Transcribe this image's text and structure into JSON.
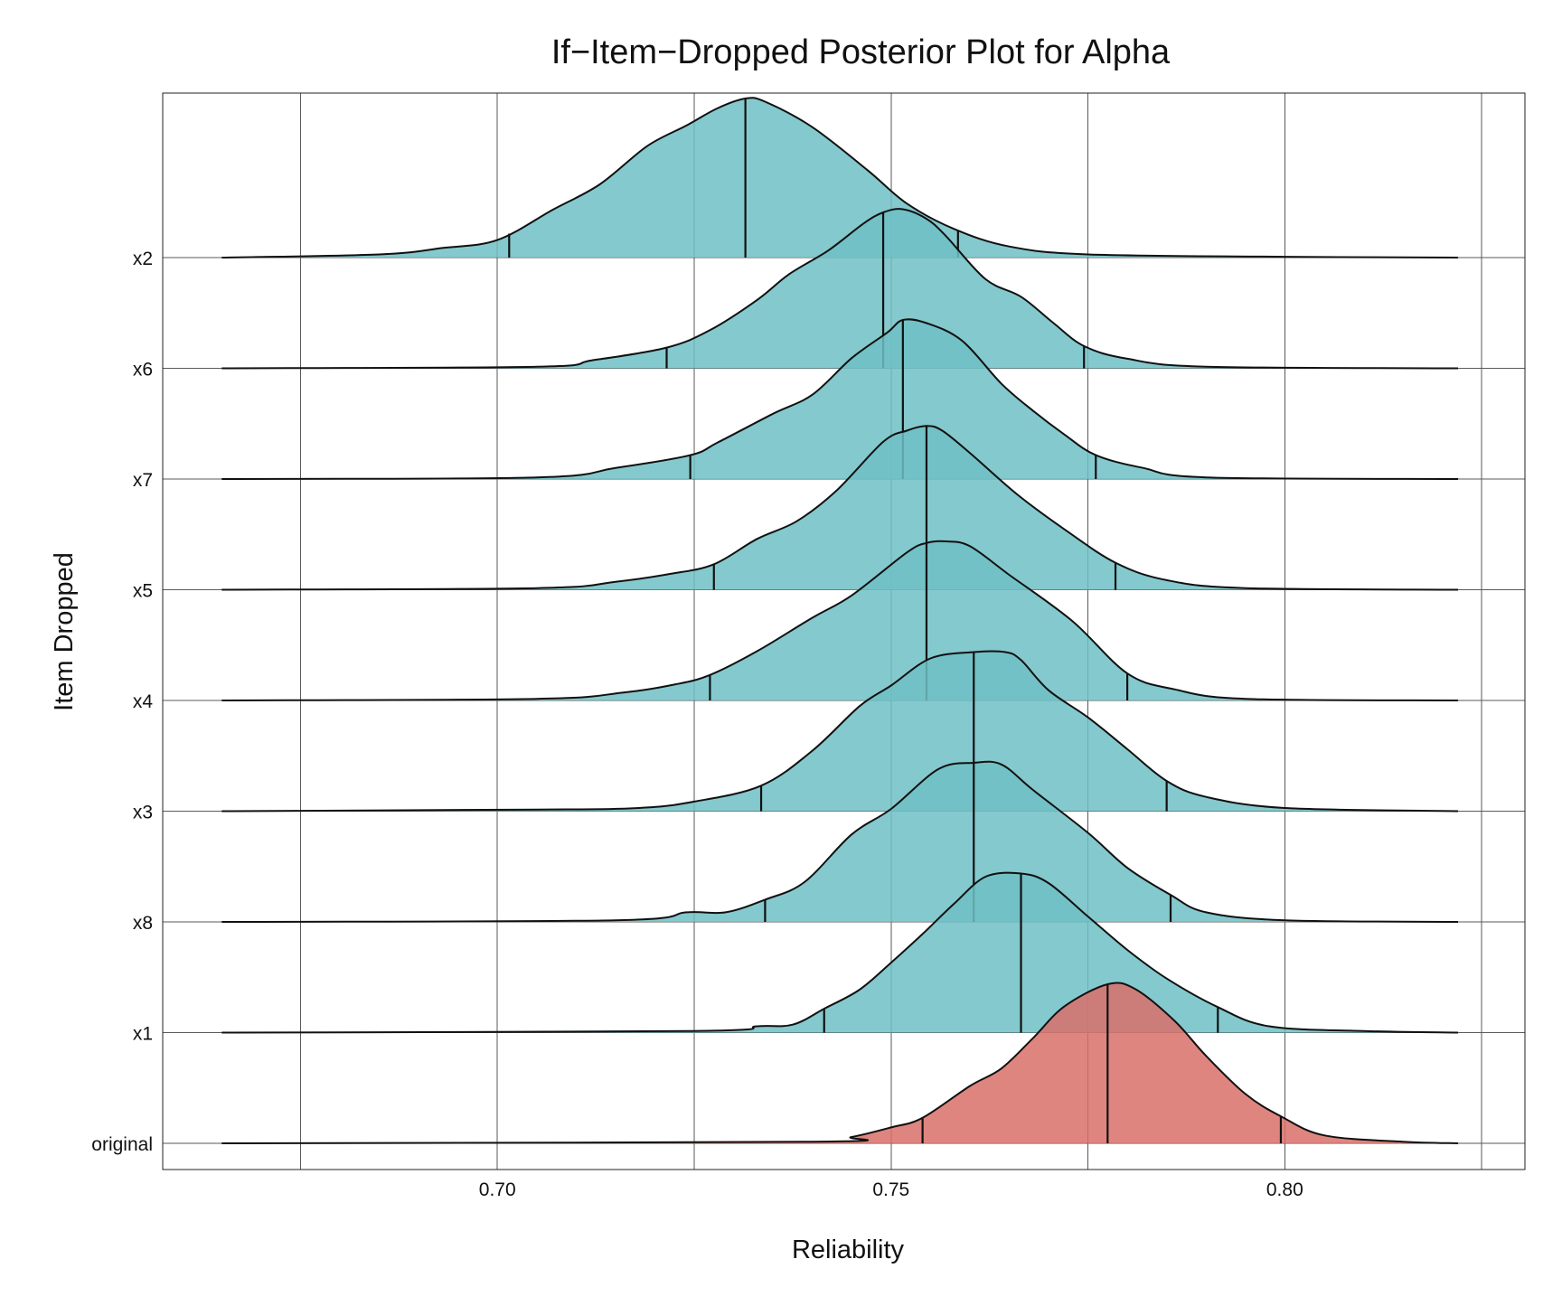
{
  "chart_data": {
    "type": "area",
    "title": "If−Item−Dropped Posterior Plot for Alpha",
    "xlabel": "Reliability",
    "ylabel": "Item Dropped",
    "xlim": [
      0.6575,
      0.8305
    ],
    "x_ticks": [
      0.7,
      0.75,
      0.8
    ],
    "x_tick_labels": [
      "0.70",
      "0.75",
      "0.80"
    ],
    "x_minor_grid": [
      0.675,
      0.725,
      0.775,
      0.825
    ],
    "grid": true,
    "legend": "none",
    "x_range": [
      0.665,
      0.822
    ],
    "series": [
      {
        "name": "x2",
        "color": "#6fbfc4",
        "median": 0.7315,
        "ci": [
          0.7015,
          0.7585
        ],
        "x": [
          0.665,
          0.685,
          0.693,
          0.7,
          0.707,
          0.713,
          0.719,
          0.724,
          0.728,
          0.7315,
          0.734,
          0.74,
          0.747,
          0.752,
          0.758,
          0.765,
          0.775,
          0.8,
          0.822
        ],
        "density": [
          0,
          0.02,
          0.06,
          0.11,
          0.3,
          0.46,
          0.7,
          0.83,
          0.94,
          1.0,
          0.98,
          0.82,
          0.55,
          0.34,
          0.18,
          0.07,
          0.02,
          0.005,
          0
        ]
      },
      {
        "name": "x6",
        "color": "#6fbfc4",
        "median": 0.749,
        "ci": [
          0.7215,
          0.7745
        ],
        "x": [
          0.665,
          0.705,
          0.712,
          0.7215,
          0.727,
          0.733,
          0.737,
          0.742,
          0.7465,
          0.749,
          0.7515,
          0.7545,
          0.757,
          0.762,
          0.7665,
          0.7705,
          0.7745,
          0.78,
          0.79,
          0.822
        ],
        "density": [
          0,
          0.01,
          0.05,
          0.13,
          0.24,
          0.43,
          0.59,
          0.74,
          0.91,
          0.98,
          1.0,
          0.94,
          0.83,
          0.56,
          0.45,
          0.29,
          0.14,
          0.06,
          0.01,
          0
        ]
      },
      {
        "name": "x7",
        "color": "#6fbfc4",
        "median": 0.7515,
        "ci": [
          0.7245,
          0.776
        ],
        "x": [
          0.665,
          0.705,
          0.715,
          0.7245,
          0.728,
          0.735,
          0.74,
          0.745,
          0.7495,
          0.7515,
          0.7545,
          0.759,
          0.764,
          0.768,
          0.772,
          0.776,
          0.782,
          0.79,
          0.822
        ],
        "density": [
          0,
          0.01,
          0.07,
          0.15,
          0.23,
          0.41,
          0.53,
          0.76,
          0.92,
          1.0,
          0.98,
          0.87,
          0.6,
          0.43,
          0.28,
          0.15,
          0.07,
          0.01,
          0
        ]
      },
      {
        "name": "x5",
        "color": "#6fbfc4",
        "median": 0.7545,
        "ci": [
          0.7275,
          0.7785
        ],
        "x": [
          0.665,
          0.705,
          0.715,
          0.722,
          0.7275,
          0.733,
          0.738,
          0.743,
          0.749,
          0.752,
          0.7545,
          0.7565,
          0.76,
          0.766,
          0.772,
          0.7785,
          0.785,
          0.795,
          0.822
        ],
        "density": [
          0,
          0.01,
          0.05,
          0.1,
          0.16,
          0.32,
          0.43,
          0.62,
          0.93,
          1.0,
          1.03,
          1.0,
          0.86,
          0.6,
          0.38,
          0.17,
          0.06,
          0.01,
          0
        ]
      },
      {
        "name": "x4",
        "color": "#6fbfc4",
        "median": 0.7545,
        "ci": [
          0.727,
          0.78
        ],
        "x": [
          0.665,
          0.705,
          0.716,
          0.7225,
          0.727,
          0.733,
          0.74,
          0.745,
          0.752,
          0.7545,
          0.757,
          0.76,
          0.765,
          0.773,
          0.78,
          0.786,
          0.795,
          0.822
        ],
        "density": [
          0,
          0.01,
          0.05,
          0.1,
          0.16,
          0.31,
          0.52,
          0.66,
          0.93,
          0.99,
          1.0,
          0.97,
          0.79,
          0.5,
          0.17,
          0.07,
          0.01,
          0
        ]
      },
      {
        "name": "x3",
        "color": "#6fbfc4",
        "median": 0.7605,
        "ci": [
          0.7335,
          0.785
        ],
        "x": [
          0.665,
          0.705,
          0.718,
          0.725,
          0.7335,
          0.74,
          0.746,
          0.75,
          0.755,
          0.7605,
          0.7645,
          0.7665,
          0.77,
          0.775,
          0.78,
          0.785,
          0.79,
          0.8,
          0.822
        ],
        "density": [
          0,
          0.01,
          0.02,
          0.06,
          0.16,
          0.38,
          0.66,
          0.79,
          0.96,
          1.0,
          1.0,
          0.95,
          0.76,
          0.59,
          0.39,
          0.19,
          0.09,
          0.02,
          0
        ]
      },
      {
        "name": "x8",
        "color": "#6fbfc4",
        "median": 0.7605,
        "ci": [
          0.734,
          0.7855
        ],
        "x": [
          0.665,
          0.715,
          0.724,
          0.729,
          0.734,
          0.739,
          0.745,
          0.75,
          0.756,
          0.7605,
          0.764,
          0.768,
          0.775,
          0.78,
          0.7855,
          0.79,
          0.8,
          0.822
        ],
        "density": [
          0,
          0.01,
          0.06,
          0.06,
          0.14,
          0.25,
          0.55,
          0.71,
          0.96,
          1.0,
          0.99,
          0.83,
          0.56,
          0.34,
          0.17,
          0.06,
          0.01,
          0
        ]
      },
      {
        "name": "x1",
        "color": "#6fbfc4",
        "median": 0.7665,
        "ci": [
          0.7415,
          0.7915
        ],
        "x": [
          0.665,
          0.725,
          0.733,
          0.7375,
          0.7415,
          0.746,
          0.75,
          0.754,
          0.758,
          0.762,
          0.7665,
          0.77,
          0.775,
          0.78,
          0.785,
          0.7915,
          0.798,
          0.81,
          0.822
        ],
        "density": [
          0,
          0.01,
          0.04,
          0.05,
          0.15,
          0.27,
          0.44,
          0.62,
          0.81,
          0.98,
          1.0,
          0.94,
          0.73,
          0.52,
          0.34,
          0.16,
          0.04,
          0.01,
          0
        ]
      },
      {
        "name": "original",
        "color": "#d9706a",
        "median": 0.7775,
        "ci": [
          0.754,
          0.7995
        ],
        "x": [
          0.665,
          0.74,
          0.745,
          0.75,
          0.754,
          0.76,
          0.764,
          0.768,
          0.772,
          0.7775,
          0.781,
          0.786,
          0.79,
          0.795,
          0.7995,
          0.805,
          0.815,
          0.822
        ],
        "density": [
          0,
          0.01,
          0.04,
          0.1,
          0.16,
          0.36,
          0.47,
          0.66,
          0.86,
          1.0,
          0.97,
          0.77,
          0.55,
          0.31,
          0.17,
          0.05,
          0.01,
          0
        ]
      }
    ]
  }
}
